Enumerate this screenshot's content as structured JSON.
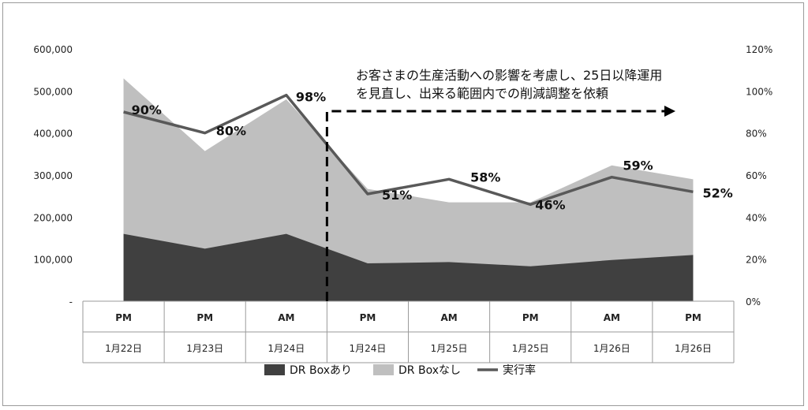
{
  "chart_data": {
    "type": "area",
    "categories": [
      {
        "time": "PM",
        "date": "1月22日"
      },
      {
        "time": "PM",
        "date": "1月23日"
      },
      {
        "time": "AM",
        "date": "1月24日"
      },
      {
        "time": "PM",
        "date": "1月24日"
      },
      {
        "time": "AM",
        "date": "1月25日"
      },
      {
        "time": "PM",
        "date": "1月25日"
      },
      {
        "time": "AM",
        "date": "1月26日"
      },
      {
        "time": "PM",
        "date": "1月26日"
      }
    ],
    "series": [
      {
        "name": "DR Boxあり",
        "kind": "stacked-area",
        "color": "#404040",
        "values": [
          160000,
          125000,
          160000,
          90000,
          93000,
          83000,
          98000,
          110000
        ]
      },
      {
        "name": "DR Boxなし",
        "kind": "stacked-area",
        "color": "#bfbfbf",
        "values": [
          370000,
          232000,
          320000,
          177000,
          142000,
          152000,
          225000,
          180000
        ]
      },
      {
        "name": "実行率",
        "kind": "line",
        "axis": "right",
        "color": "#595959",
        "values": [
          90,
          80,
          98,
          51,
          58,
          46,
          59,
          52
        ],
        "labels": [
          "90%",
          "80%",
          "98%",
          "51%",
          "58%",
          "46%",
          "59%",
          "52%"
        ]
      }
    ],
    "y_left": {
      "ticks": [
        "-",
        "100,000",
        "200,000",
        "300,000",
        "400,000",
        "500,000",
        "600,000"
      ],
      "ylim": [
        0,
        600000
      ]
    },
    "y_right": {
      "ticks": [
        "0%",
        "20%",
        "40%",
        "60%",
        "80%",
        "100%",
        "120%"
      ],
      "ylim": [
        0,
        120
      ]
    },
    "annotation": {
      "line1": "お客さまの生産活動への影響を考慮し、25日以降運用",
      "line2": "を見直し、出来る範囲内での削減調整を依頼"
    },
    "legend": [
      {
        "label": "DR Boxあり",
        "swatch": "box",
        "color": "#404040"
      },
      {
        "label": "DR Boxなし",
        "swatch": "box",
        "color": "#bfbfbf"
      },
      {
        "label": "実行率",
        "swatch": "line",
        "color": "#595959"
      }
    ],
    "legend_position": "bottom",
    "grid": false
  }
}
